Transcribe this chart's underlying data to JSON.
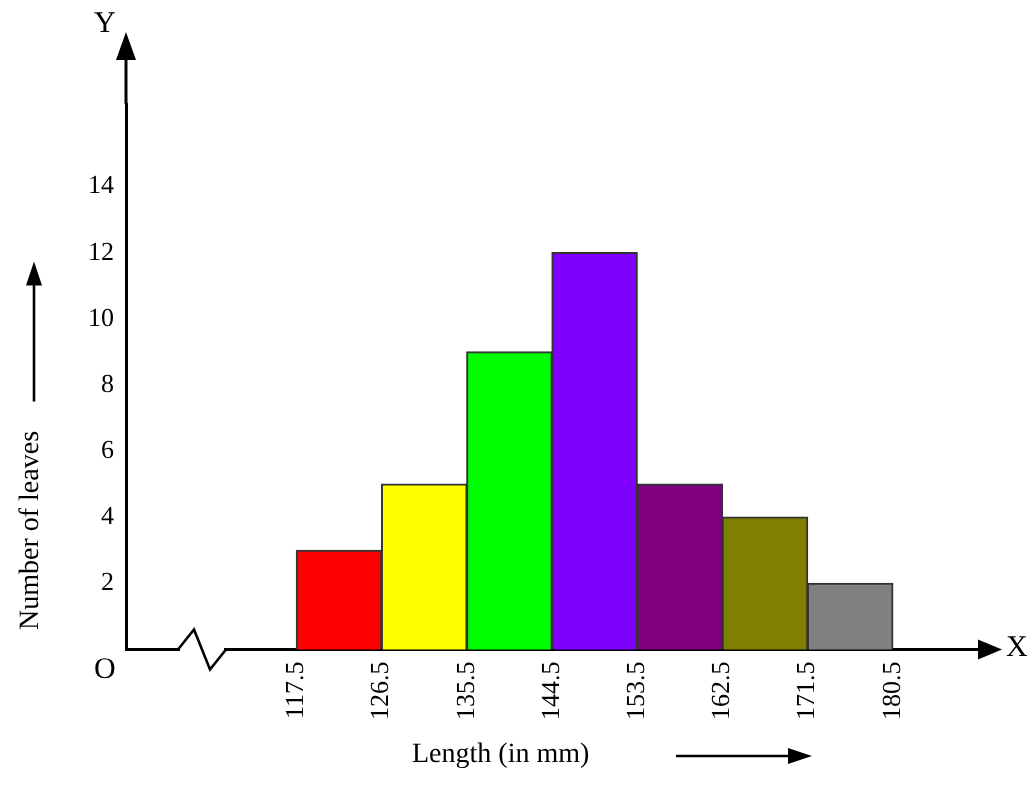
{
  "chart_data": {
    "type": "histogram",
    "xlabel": "Length (in mm)",
    "ylabel": "Number of leaves",
    "bins": [
      117.5,
      126.5,
      135.5,
      144.5,
      153.5,
      162.5,
      171.5,
      180.5
    ],
    "values": [
      3,
      5,
      9,
      12,
      5,
      4,
      2
    ],
    "colors": [
      "#ff0000",
      "#ffff00",
      "#00ff00",
      "#8000ff",
      "#800080",
      "#808000",
      "#808080"
    ],
    "xlim": [
      99.5,
      189.5
    ],
    "xticks": [
      117.5,
      126.5,
      135.5,
      144.5,
      153.5,
      162.5,
      171.5,
      180.5
    ],
    "ylim": [
      0,
      16.5
    ],
    "yticks": [
      2,
      4,
      6,
      8,
      10,
      12,
      14
    ],
    "annotations": [
      "Y",
      "X",
      "O"
    ],
    "grid": false,
    "legend": false
  }
}
